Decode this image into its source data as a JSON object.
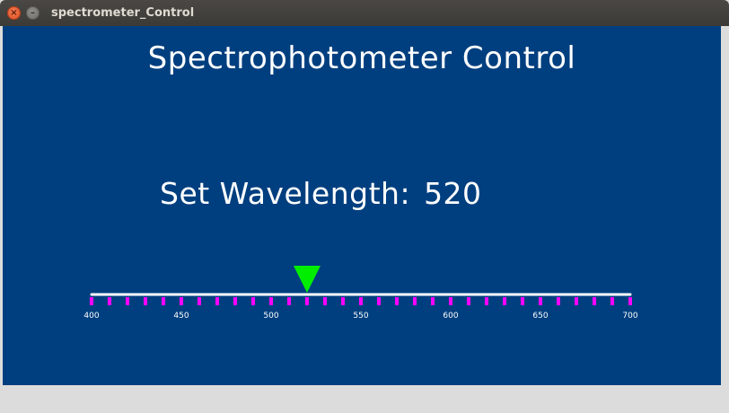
{
  "window": {
    "title": "spectrometer_Control",
    "close_glyph": "×",
    "minimize_glyph": "–"
  },
  "app": {
    "heading": "Spectrophotometer Control",
    "wavelength_label": "Set Wavelength:",
    "wavelength_value": "520"
  },
  "slider": {
    "min": 400,
    "max": 700,
    "value": 520,
    "minor_tick_step": 10,
    "label_step": 50,
    "labels": [
      "400",
      "450",
      "500",
      "550",
      "600",
      "650",
      "700"
    ]
  },
  "colors": {
    "background": "#003f7f",
    "track": "#ffffff",
    "ticks": "#ff00ff",
    "pointer": "#00ee00",
    "text": "#ffffff"
  }
}
